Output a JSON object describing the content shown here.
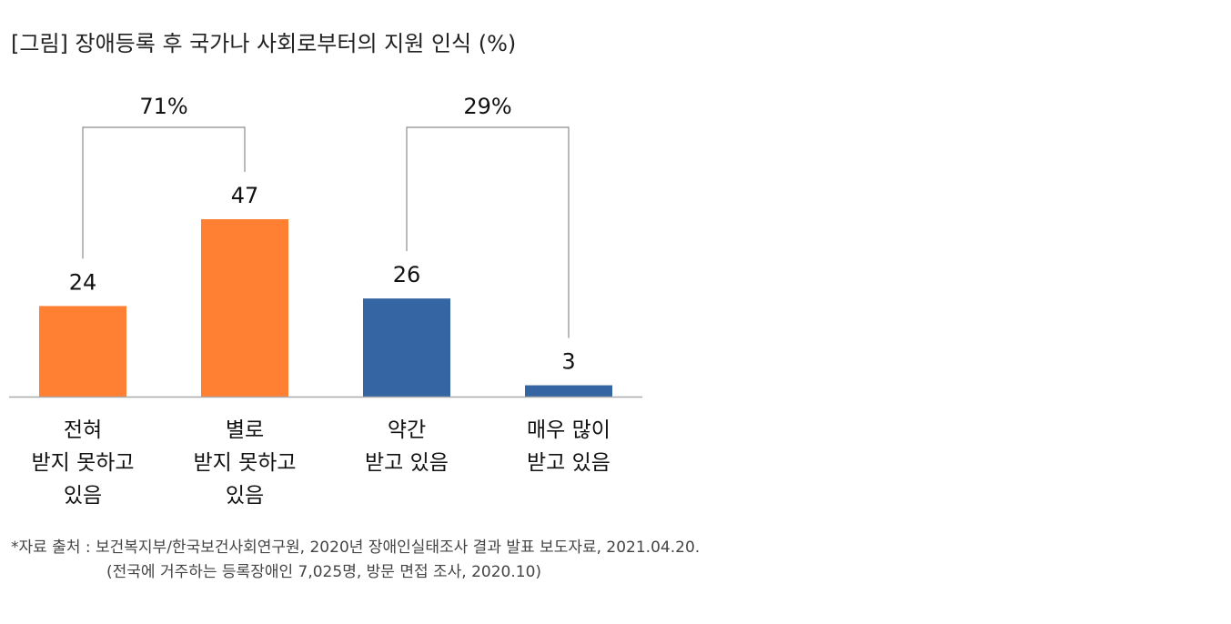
{
  "title": "[그림] 장애등록 후 국가나 사회로부터의 지원 인식 (%)",
  "chart_data": {
    "type": "bar",
    "categories": [
      [
        "전혀",
        "받지 못하고",
        "있음"
      ],
      [
        "별로",
        "받지 못하고",
        "있음"
      ],
      [
        "약간",
        "받고 있음"
      ],
      [
        "매우 많이",
        "받고 있음"
      ]
    ],
    "values": [
      24,
      47,
      26,
      3
    ],
    "data_labels": [
      "24",
      "47",
      "26",
      "3"
    ],
    "colors": [
      "#FF8033",
      "#FF8033",
      "#3565A3",
      "#3565A3"
    ],
    "groups": [
      {
        "label": "71%",
        "from": 0,
        "to": 1
      },
      {
        "label": "29%",
        "from": 2,
        "to": 3
      }
    ],
    "ylim": [
      0,
      47
    ],
    "grid": false,
    "legend": "none"
  },
  "notes": {
    "line1": "*자료 출처 : 보건복지부/한국보건사회연구원, 2020년 장애인실태조사 결과 발표 보도자료, 2021.04.20.",
    "line2": "(전국에 거주하는 등록장애인 7,025명, 방문 면접 조사, 2020.10)"
  }
}
